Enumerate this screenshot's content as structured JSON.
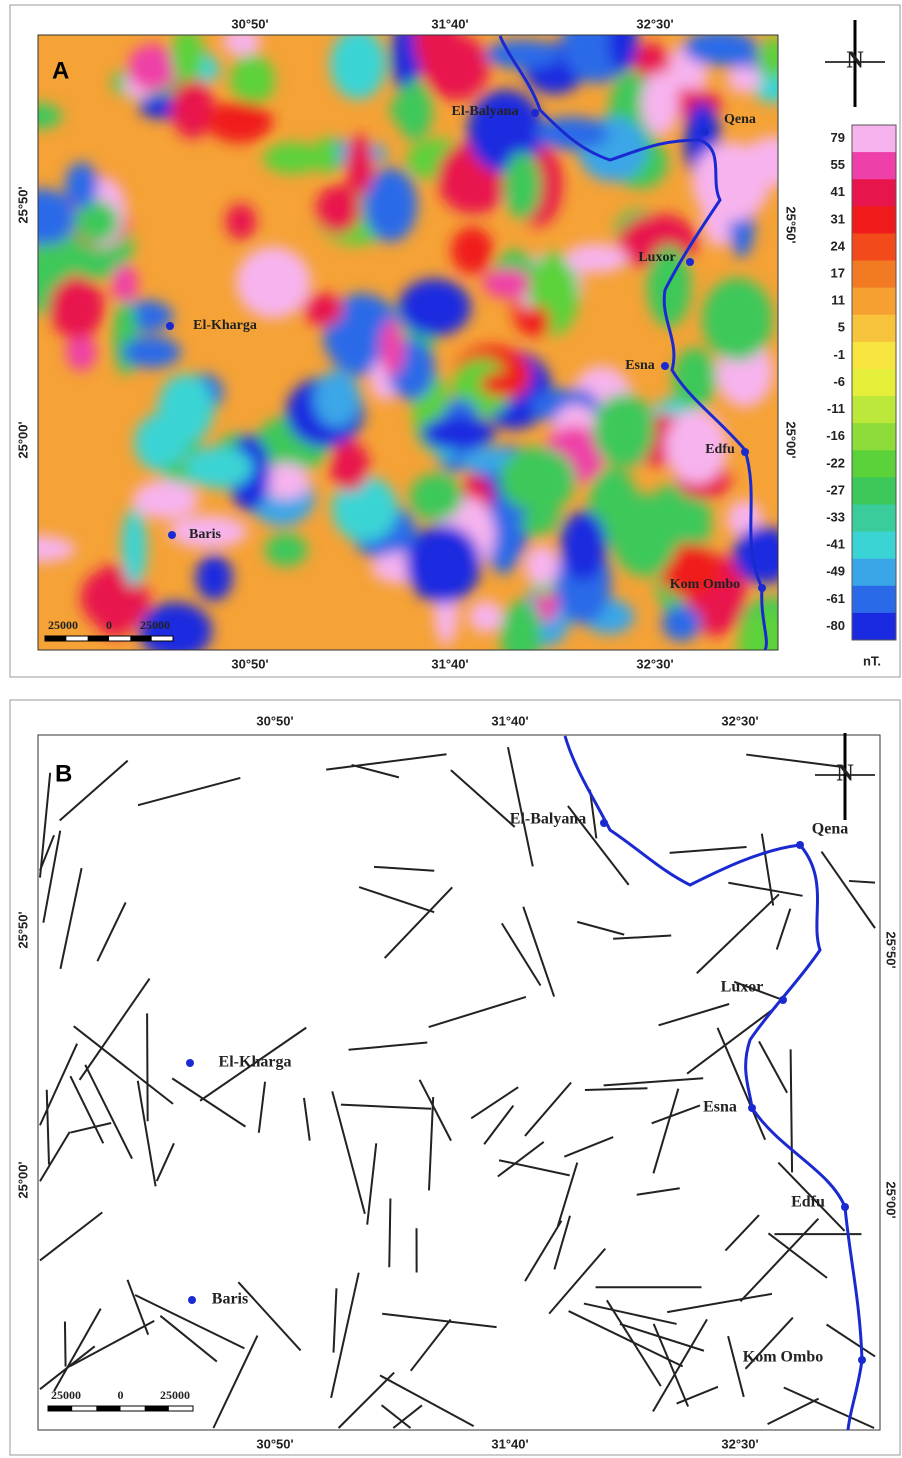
{
  "panels": [
    {
      "label": "A",
      "lon_top": [
        "30°50'",
        "31°40'",
        "32°30'"
      ],
      "lon_bottom": [
        "30°50'",
        "31°40'",
        "32°30'"
      ],
      "lat_left": [
        "25°50'",
        "25°00'"
      ],
      "lat_right": [
        "25°50'",
        "25°00'"
      ],
      "north": "N",
      "scale": [
        "25000",
        "0",
        "25000"
      ],
      "cities": [
        "El-Balyana",
        "Qena",
        "Luxor",
        "El-Kharga",
        "Esna",
        "Edfu",
        "Baris",
        "Kom Ombo"
      ],
      "legend": {
        "unit": "nT.",
        "entries": [
          {
            "value": 79,
            "color": "#f7b3ee"
          },
          {
            "value": 55,
            "color": "#ef3fa8"
          },
          {
            "value": 41,
            "color": "#e8154d"
          },
          {
            "value": 31,
            "color": "#f01a1a"
          },
          {
            "value": 24,
            "color": "#f24a1a"
          },
          {
            "value": 17,
            "color": "#f27a22"
          },
          {
            "value": 11,
            "color": "#f5a030"
          },
          {
            "value": 5,
            "color": "#f7c33c"
          },
          {
            "value": -1,
            "color": "#f8e43e"
          },
          {
            "value": -6,
            "color": "#e5ef3a"
          },
          {
            "value": -11,
            "color": "#bbe83a"
          },
          {
            "value": -16,
            "color": "#8ddc3a"
          },
          {
            "value": -22,
            "color": "#5bd23a"
          },
          {
            "value": -27,
            "color": "#3cc85a"
          },
          {
            "value": -33,
            "color": "#3acc9a"
          },
          {
            "value": -41,
            "color": "#3ad4d4"
          },
          {
            "value": -49,
            "color": "#3aa6e8"
          },
          {
            "value": -61,
            "color": "#2a6ae8"
          },
          {
            "value": -80,
            "color": "#1a2ae0"
          }
        ]
      }
    },
    {
      "label": "B",
      "lon_top": [
        "30°50'",
        "31°40'",
        "32°30'"
      ],
      "lon_bottom": [
        "30°50'",
        "31°40'",
        "32°30'"
      ],
      "lat_left": [
        "25°50'",
        "25°00'"
      ],
      "lat_right": [
        "25°50'",
        "25°00'"
      ],
      "north": "N",
      "scale": [
        "25000",
        "0",
        "25000"
      ],
      "cities": [
        "El-Balyana",
        "Qena",
        "Luxor",
        "El-Kharga",
        "Esna",
        "Edfu",
        "Baris",
        "Kom Ombo"
      ]
    }
  ]
}
